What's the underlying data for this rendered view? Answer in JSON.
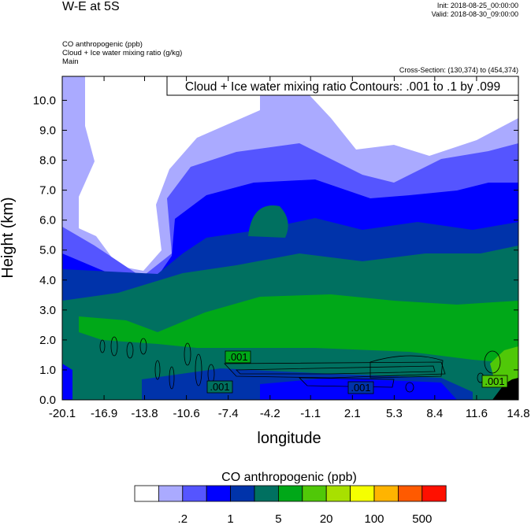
{
  "chart_data": {
    "type": "heatmap",
    "title": "W-E at 5S",
    "init": "Init: 2018-08-25_00:00:00",
    "valid": "Valid: 2018-08-30_09:00:00",
    "fields": [
      "CO anthropogenic   (ppb)",
      "Cloud + Ice water mixing ratio   (g/kg)",
      "Main"
    ],
    "cross_section": "Cross-Section: (130,374) to (454,374)",
    "contour_info": "Cloud + Ice water mixing ratio Contours: .001 to .1 by .099",
    "contour_label": ".001",
    "xlabel": "longitude",
    "ylabel": "Height (km)",
    "xlim": [
      -20.1,
      14.8
    ],
    "ylim": [
      0,
      10.8
    ],
    "xticks": [
      "-20.1",
      "-16.9",
      "-13.8",
      "-10.6",
      "-7.4",
      "-4.2",
      "-1.1",
      "2.1",
      "5.3",
      "8.4",
      "11.6",
      "14.8"
    ],
    "yticks": [
      "0.0",
      "1.0",
      "2.0",
      "3.0",
      "4.0",
      "5.0",
      "6.0",
      "7.0",
      "8.0",
      "9.0",
      "10.0"
    ],
    "colorbar": {
      "title": "CO anthropogenic  (ppb)",
      "colors": [
        "#ffffff",
        "#aaaaff",
        "#5555ff",
        "#0000ff",
        "#0033aa",
        "#007060",
        "#00a818",
        "#50c808",
        "#a8e000",
        "#f5ff00",
        "#ffb400",
        "#ff5a00",
        "#ff1000"
      ],
      "labels": [
        {
          "after_box": 2,
          "text": ".2"
        },
        {
          "after_box": 4,
          "text": "1"
        },
        {
          "after_box": 6,
          "text": "5"
        },
        {
          "after_box": 8,
          "text": "20"
        },
        {
          "after_box": 10,
          "text": "100"
        },
        {
          "after_box": 12,
          "text": "500"
        }
      ]
    }
  }
}
